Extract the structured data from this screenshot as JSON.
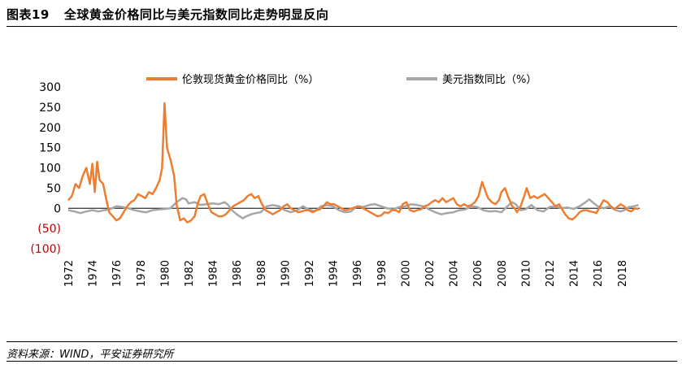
{
  "header": {
    "figure_no": "图表19",
    "title": "全球黄金价格同比与美元指数同比走势明显反向"
  },
  "source": "资料来源：WIND，平安证券研究所",
  "colors": {
    "gold": "#ED7D31",
    "usd": "#A6A6A6",
    "negative_label": "#C00000",
    "zero_line": "#000000"
  },
  "chart_data": {
    "type": "line",
    "title": "",
    "xlabel": "",
    "ylabel": "",
    "ylim": [
      -100,
      300
    ],
    "yticks": [
      300,
      250,
      200,
      150,
      100,
      50,
      0,
      -50,
      -100
    ],
    "ytick_labels": [
      "300",
      "250",
      "200",
      "150",
      "100",
      "50",
      "0",
      "(50)",
      "(100)"
    ],
    "xlim": [
      1972,
      2019.5
    ],
    "xticks": [
      "1972",
      "1974",
      "1976",
      "1978",
      "1980",
      "1982",
      "1984",
      "1986",
      "1988",
      "1990",
      "1992",
      "1994",
      "1996",
      "1998",
      "2000",
      "2002",
      "2004",
      "2006",
      "2008",
      "2010",
      "2012",
      "2014",
      "2016",
      "2018"
    ],
    "legend_position": "top",
    "grid": false,
    "series": [
      {
        "name": "伦敦现货黄金价格同比（%）",
        "color": "#ED7D31",
        "points": [
          [
            1972.0,
            20
          ],
          [
            1972.3,
            30
          ],
          [
            1972.6,
            60
          ],
          [
            1972.9,
            50
          ],
          [
            1973.2,
            80
          ],
          [
            1973.5,
            100
          ],
          [
            1973.8,
            60
          ],
          [
            1974.0,
            110
          ],
          [
            1974.2,
            40
          ],
          [
            1974.4,
            115
          ],
          [
            1974.6,
            70
          ],
          [
            1974.9,
            60
          ],
          [
            1975.1,
            30
          ],
          [
            1975.4,
            -10
          ],
          [
            1975.7,
            -20
          ],
          [
            1976.0,
            -30
          ],
          [
            1976.3,
            -25
          ],
          [
            1976.6,
            -10
          ],
          [
            1976.9,
            5
          ],
          [
            1977.2,
            15
          ],
          [
            1977.5,
            20
          ],
          [
            1977.8,
            35
          ],
          [
            1978.1,
            30
          ],
          [
            1978.4,
            25
          ],
          [
            1978.7,
            40
          ],
          [
            1979.0,
            35
          ],
          [
            1979.3,
            50
          ],
          [
            1979.6,
            70
          ],
          [
            1979.8,
            100
          ],
          [
            1980.0,
            260
          ],
          [
            1980.2,
            150
          ],
          [
            1980.5,
            120
          ],
          [
            1980.8,
            80
          ],
          [
            1981.0,
            10
          ],
          [
            1981.3,
            -30
          ],
          [
            1981.6,
            -25
          ],
          [
            1981.9,
            -35
          ],
          [
            1982.2,
            -30
          ],
          [
            1982.5,
            -20
          ],
          [
            1982.8,
            15
          ],
          [
            1983.0,
            30
          ],
          [
            1983.3,
            35
          ],
          [
            1983.6,
            10
          ],
          [
            1983.9,
            -10
          ],
          [
            1984.2,
            -15
          ],
          [
            1984.5,
            -20
          ],
          [
            1984.8,
            -20
          ],
          [
            1985.1,
            -15
          ],
          [
            1985.4,
            -5
          ],
          [
            1985.7,
            5
          ],
          [
            1986.0,
            10
          ],
          [
            1986.3,
            15
          ],
          [
            1986.6,
            20
          ],
          [
            1986.9,
            30
          ],
          [
            1987.2,
            35
          ],
          [
            1987.5,
            25
          ],
          [
            1987.8,
            30
          ],
          [
            1988.1,
            10
          ],
          [
            1988.4,
            -5
          ],
          [
            1988.7,
            -10
          ],
          [
            1989.0,
            -15
          ],
          [
            1989.3,
            -10
          ],
          [
            1989.6,
            -5
          ],
          [
            1989.9,
            5
          ],
          [
            1990.2,
            10
          ],
          [
            1990.5,
            0
          ],
          [
            1990.8,
            -5
          ],
          [
            1991.1,
            -10
          ],
          [
            1991.4,
            -8
          ],
          [
            1991.7,
            -5
          ],
          [
            1992.0,
            -5
          ],
          [
            1992.3,
            -10
          ],
          [
            1992.6,
            -5
          ],
          [
            1992.9,
            -3
          ],
          [
            1993.2,
            5
          ],
          [
            1993.5,
            15
          ],
          [
            1993.8,
            10
          ],
          [
            1994.1,
            10
          ],
          [
            1994.4,
            5
          ],
          [
            1994.7,
            0
          ],
          [
            1995.0,
            -5
          ],
          [
            1995.3,
            -3
          ],
          [
            1995.6,
            0
          ],
          [
            1995.9,
            3
          ],
          [
            1996.2,
            5
          ],
          [
            1996.5,
            0
          ],
          [
            1996.8,
            -5
          ],
          [
            1997.1,
            -10
          ],
          [
            1997.4,
            -15
          ],
          [
            1997.7,
            -20
          ],
          [
            1998.0,
            -18
          ],
          [
            1998.3,
            -10
          ],
          [
            1998.6,
            -12
          ],
          [
            1998.9,
            -5
          ],
          [
            1999.2,
            -5
          ],
          [
            1999.5,
            -10
          ],
          [
            1999.8,
            10
          ],
          [
            2000.1,
            15
          ],
          [
            2000.4,
            -5
          ],
          [
            2000.7,
            -8
          ],
          [
            2001.0,
            -5
          ],
          [
            2001.3,
            -3
          ],
          [
            2001.6,
            5
          ],
          [
            2001.9,
            8
          ],
          [
            2002.2,
            15
          ],
          [
            2002.5,
            20
          ],
          [
            2002.8,
            15
          ],
          [
            2003.1,
            25
          ],
          [
            2003.4,
            15
          ],
          [
            2003.7,
            20
          ],
          [
            2004.0,
            25
          ],
          [
            2004.3,
            10
          ],
          [
            2004.6,
            5
          ],
          [
            2004.9,
            10
          ],
          [
            2005.2,
            5
          ],
          [
            2005.5,
            8
          ],
          [
            2005.8,
            15
          ],
          [
            2006.1,
            30
          ],
          [
            2006.4,
            65
          ],
          [
            2006.7,
            40
          ],
          [
            2006.9,
            25
          ],
          [
            2007.2,
            15
          ],
          [
            2007.5,
            10
          ],
          [
            2007.8,
            20
          ],
          [
            2008.0,
            40
          ],
          [
            2008.3,
            50
          ],
          [
            2008.6,
            25
          ],
          [
            2008.9,
            5
          ],
          [
            2009.1,
            0
          ],
          [
            2009.3,
            -10
          ],
          [
            2009.6,
            5
          ],
          [
            2009.9,
            30
          ],
          [
            2010.1,
            50
          ],
          [
            2010.4,
            25
          ],
          [
            2010.7,
            30
          ],
          [
            2011.0,
            25
          ],
          [
            2011.3,
            30
          ],
          [
            2011.6,
            35
          ],
          [
            2011.9,
            25
          ],
          [
            2012.2,
            15
          ],
          [
            2012.5,
            5
          ],
          [
            2012.8,
            10
          ],
          [
            2013.0,
            0
          ],
          [
            2013.3,
            -15
          ],
          [
            2013.6,
            -25
          ],
          [
            2013.9,
            -28
          ],
          [
            2014.2,
            -20
          ],
          [
            2014.5,
            -10
          ],
          [
            2014.8,
            -5
          ],
          [
            2015.1,
            -5
          ],
          [
            2015.4,
            -8
          ],
          [
            2015.7,
            -10
          ],
          [
            2015.9,
            -12
          ],
          [
            2016.2,
            5
          ],
          [
            2016.5,
            20
          ],
          [
            2016.8,
            15
          ],
          [
            2017.1,
            5
          ],
          [
            2017.4,
            -2
          ],
          [
            2017.7,
            5
          ],
          [
            2017.9,
            10
          ],
          [
            2018.2,
            5
          ],
          [
            2018.5,
            -5
          ],
          [
            2018.8,
            -8
          ],
          [
            2019.1,
            0
          ],
          [
            2019.4,
            -2
          ]
        ]
      },
      {
        "name": "美元指数同比（%）",
        "color": "#A6A6A6",
        "points": [
          [
            1972.0,
            -5
          ],
          [
            1972.5,
            -8
          ],
          [
            1973.0,
            -12
          ],
          [
            1973.5,
            -8
          ],
          [
            1974.0,
            -5
          ],
          [
            1974.5,
            -8
          ],
          [
            1975.0,
            -5
          ],
          [
            1975.5,
            -2
          ],
          [
            1976.0,
            5
          ],
          [
            1976.5,
            3
          ],
          [
            1977.0,
            0
          ],
          [
            1977.5,
            -5
          ],
          [
            1978.0,
            -8
          ],
          [
            1978.5,
            -10
          ],
          [
            1979.0,
            -5
          ],
          [
            1979.5,
            -3
          ],
          [
            1980.0,
            -2
          ],
          [
            1980.5,
            0
          ],
          [
            1981.0,
            15
          ],
          [
            1981.5,
            25
          ],
          [
            1981.8,
            22
          ],
          [
            1982.0,
            12
          ],
          [
            1982.5,
            15
          ],
          [
            1983.0,
            8
          ],
          [
            1983.5,
            10
          ],
          [
            1984.0,
            12
          ],
          [
            1984.5,
            10
          ],
          [
            1985.0,
            15
          ],
          [
            1985.3,
            8
          ],
          [
            1985.6,
            -5
          ],
          [
            1986.0,
            -15
          ],
          [
            1986.5,
            -25
          ],
          [
            1986.8,
            -20
          ],
          [
            1987.2,
            -15
          ],
          [
            1987.6,
            -12
          ],
          [
            1988.0,
            -10
          ],
          [
            1988.5,
            5
          ],
          [
            1989.0,
            8
          ],
          [
            1989.5,
            5
          ],
          [
            1990.0,
            -5
          ],
          [
            1990.5,
            -10
          ],
          [
            1991.0,
            -5
          ],
          [
            1991.5,
            5
          ],
          [
            1992.0,
            -3
          ],
          [
            1992.5,
            -8
          ],
          [
            1993.0,
            5
          ],
          [
            1993.5,
            8
          ],
          [
            1994.0,
            5
          ],
          [
            1994.5,
            -5
          ],
          [
            1995.0,
            -10
          ],
          [
            1995.5,
            -8
          ],
          [
            1996.0,
            5
          ],
          [
            1996.5,
            3
          ],
          [
            1997.0,
            8
          ],
          [
            1997.5,
            10
          ],
          [
            1998.0,
            5
          ],
          [
            1998.5,
            0
          ],
          [
            1999.0,
            -3
          ],
          [
            1999.5,
            3
          ],
          [
            2000.0,
            5
          ],
          [
            2000.5,
            10
          ],
          [
            2001.0,
            8
          ],
          [
            2001.5,
            5
          ],
          [
            2002.0,
            -3
          ],
          [
            2002.5,
            -10
          ],
          [
            2003.0,
            -15
          ],
          [
            2003.5,
            -12
          ],
          [
            2004.0,
            -10
          ],
          [
            2004.5,
            -5
          ],
          [
            2005.0,
            -3
          ],
          [
            2005.5,
            5
          ],
          [
            2006.0,
            3
          ],
          [
            2006.5,
            -5
          ],
          [
            2007.0,
            -8
          ],
          [
            2007.5,
            -7
          ],
          [
            2008.0,
            -10
          ],
          [
            2008.5,
            5
          ],
          [
            2008.9,
            15
          ],
          [
            2009.2,
            10
          ],
          [
            2009.6,
            -5
          ],
          [
            2010.0,
            -3
          ],
          [
            2010.5,
            8
          ],
          [
            2011.0,
            -5
          ],
          [
            2011.5,
            -8
          ],
          [
            2012.0,
            3
          ],
          [
            2012.5,
            5
          ],
          [
            2013.0,
            0
          ],
          [
            2013.5,
            2
          ],
          [
            2014.0,
            -2
          ],
          [
            2014.5,
            5
          ],
          [
            2015.0,
            15
          ],
          [
            2015.3,
            22
          ],
          [
            2015.7,
            12
          ],
          [
            2016.0,
            5
          ],
          [
            2016.5,
            0
          ],
          [
            2017.0,
            5
          ],
          [
            2017.5,
            -5
          ],
          [
            2017.9,
            -8
          ],
          [
            2018.2,
            -5
          ],
          [
            2018.6,
            3
          ],
          [
            2019.0,
            5
          ],
          [
            2019.4,
            8
          ]
        ]
      }
    ]
  }
}
